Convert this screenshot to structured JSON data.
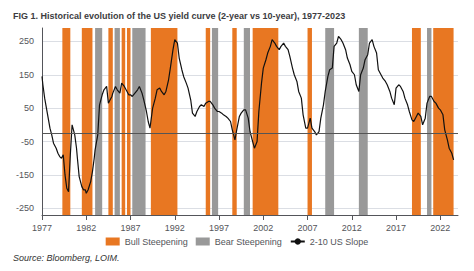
{
  "chart_data": {
    "type": "line",
    "title": "FIG 1. Historical evolution of the US yield curve (2-year vs 10-year), 1977-2023",
    "annotation": "Source: Bloomberg, LOIM.",
    "xlim": [
      1977,
      2024
    ],
    "ylim": [
      -270,
      290
    ],
    "xticks": [
      1977,
      1982,
      1987,
      1992,
      1997,
      2002,
      2007,
      2012,
      2017,
      2022
    ],
    "yticks": [
      -250,
      -150,
      -50,
      50,
      150,
      250
    ],
    "grid": "y",
    "legend": "bottom",
    "shaded_regions": [
      {
        "name": "Bull Steepening",
        "color": "#E87722",
        "spans": [
          [
            1979.3,
            1980.2
          ],
          [
            1981.5,
            1982.7
          ],
          [
            1984.5,
            1985.0
          ],
          [
            1986.0,
            1986.4
          ],
          [
            1986.6,
            1987.0
          ],
          [
            1989.3,
            1992.3
          ],
          [
            1995.5,
            1996.0
          ],
          [
            1998.5,
            1999.0
          ],
          [
            2000.8,
            2003.7
          ],
          [
            2007.0,
            2007.5
          ],
          [
            2018.8,
            2019.8
          ],
          [
            2021.2,
            2023.5
          ]
        ]
      },
      {
        "name": "Bear Steepening",
        "color": "#999999",
        "spans": [
          [
            1983.0,
            1983.8
          ],
          [
            1985.2,
            1985.8
          ],
          [
            1987.2,
            1988.7
          ],
          [
            1996.2,
            1996.9
          ],
          [
            1999.8,
            2000.5
          ],
          [
            2009.0,
            2010.0
          ],
          [
            2012.8,
            2013.8
          ],
          [
            2020.5,
            2021.0
          ]
        ]
      }
    ],
    "reference_lines": [
      {
        "y": -25,
        "color": "#555555"
      }
    ],
    "x": [
      1977.0,
      1977.1,
      1977.3,
      1977.5,
      1977.7,
      1977.9,
      1978.1,
      1978.3,
      1978.6,
      1978.8,
      1979.0,
      1979.2,
      1979.4,
      1979.6,
      1979.8,
      1980.0,
      1980.2,
      1980.4,
      1980.7,
      1980.9,
      1981.0,
      1981.2,
      1981.5,
      1981.7,
      1981.9,
      1982.0,
      1982.2,
      1982.5,
      1982.7,
      1982.9,
      1983.0,
      1983.3,
      1983.5,
      1983.8,
      1984.0,
      1984.3,
      1984.5,
      1984.7,
      1984.9,
      1985.0,
      1985.3,
      1985.5,
      1985.8,
      1986.0,
      1986.3,
      1986.5,
      1986.8,
      1987.0,
      1987.2,
      1987.5,
      1987.8,
      1988.0,
      1988.3,
      1988.5,
      1988.8,
      1989.0,
      1989.2,
      1989.5,
      1989.8,
      1990.0,
      1990.3,
      1990.5,
      1990.8,
      1991.0,
      1991.3,
      1991.5,
      1991.8,
      1992.0,
      1992.3,
      1992.5,
      1992.8,
      1993.0,
      1993.3,
      1993.5,
      1993.8,
      1994.0,
      1994.3,
      1994.5,
      1994.8,
      1995.0,
      1995.3,
      1995.5,
      1995.8,
      1996.0,
      1996.3,
      1996.5,
      1996.8,
      1997.0,
      1997.3,
      1997.5,
      1997.8,
      1998.0,
      1998.3,
      1998.5,
      1998.8,
      1999.0,
      1999.3,
      1999.5,
      1999.8,
      2000.0,
      2000.3,
      2000.5,
      2000.8,
      2001.0,
      2001.3,
      2001.5,
      2001.8,
      2002.0,
      2002.3,
      2002.5,
      2002.8,
      2003.0,
      2003.3,
      2003.5,
      2003.8,
      2004.0,
      2004.3,
      2004.5,
      2004.8,
      2005.0,
      2005.3,
      2005.5,
      2005.8,
      2006.0,
      2006.3,
      2006.5,
      2006.8,
      2007.0,
      2007.3,
      2007.5,
      2007.8,
      2008.0,
      2008.3,
      2008.5,
      2008.8,
      2009.0,
      2009.3,
      2009.5,
      2009.8,
      2010.0,
      2010.3,
      2010.5,
      2010.8,
      2011.0,
      2011.3,
      2011.5,
      2011.8,
      2012.0,
      2012.3,
      2012.5,
      2012.8,
      2013.0,
      2013.3,
      2013.5,
      2013.8,
      2014.0,
      2014.3,
      2014.5,
      2014.8,
      2015.0,
      2015.3,
      2015.5,
      2015.8,
      2016.0,
      2016.3,
      2016.5,
      2016.8,
      2017.0,
      2017.3,
      2017.5,
      2017.8,
      2018.0,
      2018.3,
      2018.5,
      2018.8,
      2019.0,
      2019.3,
      2019.5,
      2019.8,
      2020.0,
      2020.3,
      2020.5,
      2020.8,
      2021.0,
      2021.3,
      2021.5,
      2021.8,
      2022.0,
      2022.3,
      2022.5,
      2022.8,
      2023.0,
      2023.3,
      2023.5
    ],
    "series": [
      {
        "name": "2-10 US Slope",
        "color": "#111111",
        "values": [
          145,
          120,
          80,
          50,
          20,
          -10,
          -30,
          -55,
          -70,
          -85,
          -95,
          -100,
          -90,
          -150,
          -190,
          -200,
          -90,
          0,
          -30,
          -70,
          -100,
          -155,
          -185,
          -195,
          -195,
          -205,
          -195,
          -170,
          -140,
          -100,
          -75,
          -30,
          60,
          90,
          105,
          115,
          65,
          75,
          85,
          95,
          115,
          105,
          95,
          125,
          115,
          105,
          90,
          90,
          85,
          95,
          105,
          115,
          95,
          75,
          40,
          10,
          -10,
          50,
          80,
          105,
          110,
          100,
          90,
          100,
          135,
          170,
          225,
          255,
          245,
          200,
          165,
          145,
          125,
          110,
          75,
          35,
          25,
          40,
          55,
          60,
          55,
          65,
          70,
          70,
          60,
          50,
          40,
          40,
          35,
          30,
          25,
          20,
          10,
          -15,
          -45,
          -15,
          25,
          35,
          45,
          45,
          20,
          -20,
          -50,
          -70,
          -50,
          40,
          125,
          170,
          195,
          215,
          235,
          255,
          245,
          235,
          225,
          235,
          245,
          235,
          225,
          205,
          170,
          150,
          130,
          100,
          80,
          30,
          -10,
          -10,
          20,
          -10,
          -20,
          -30,
          -20,
          20,
          60,
          100,
          145,
          165,
          170,
          235,
          245,
          265,
          255,
          245,
          225,
          200,
          180,
          160,
          150,
          120,
          100,
          150,
          170,
          195,
          210,
          245,
          255,
          235,
          215,
          165,
          150,
          140,
          130,
          120,
          100,
          80,
          60,
          110,
          120,
          115,
          100,
          80,
          60,
          40,
          15,
          10,
          25,
          35,
          25,
          0,
          20,
          65,
          85,
          85,
          70,
          65,
          50,
          45,
          30,
          -15,
          -45,
          -70,
          -85,
          -105
        ]
      }
    ]
  }
}
